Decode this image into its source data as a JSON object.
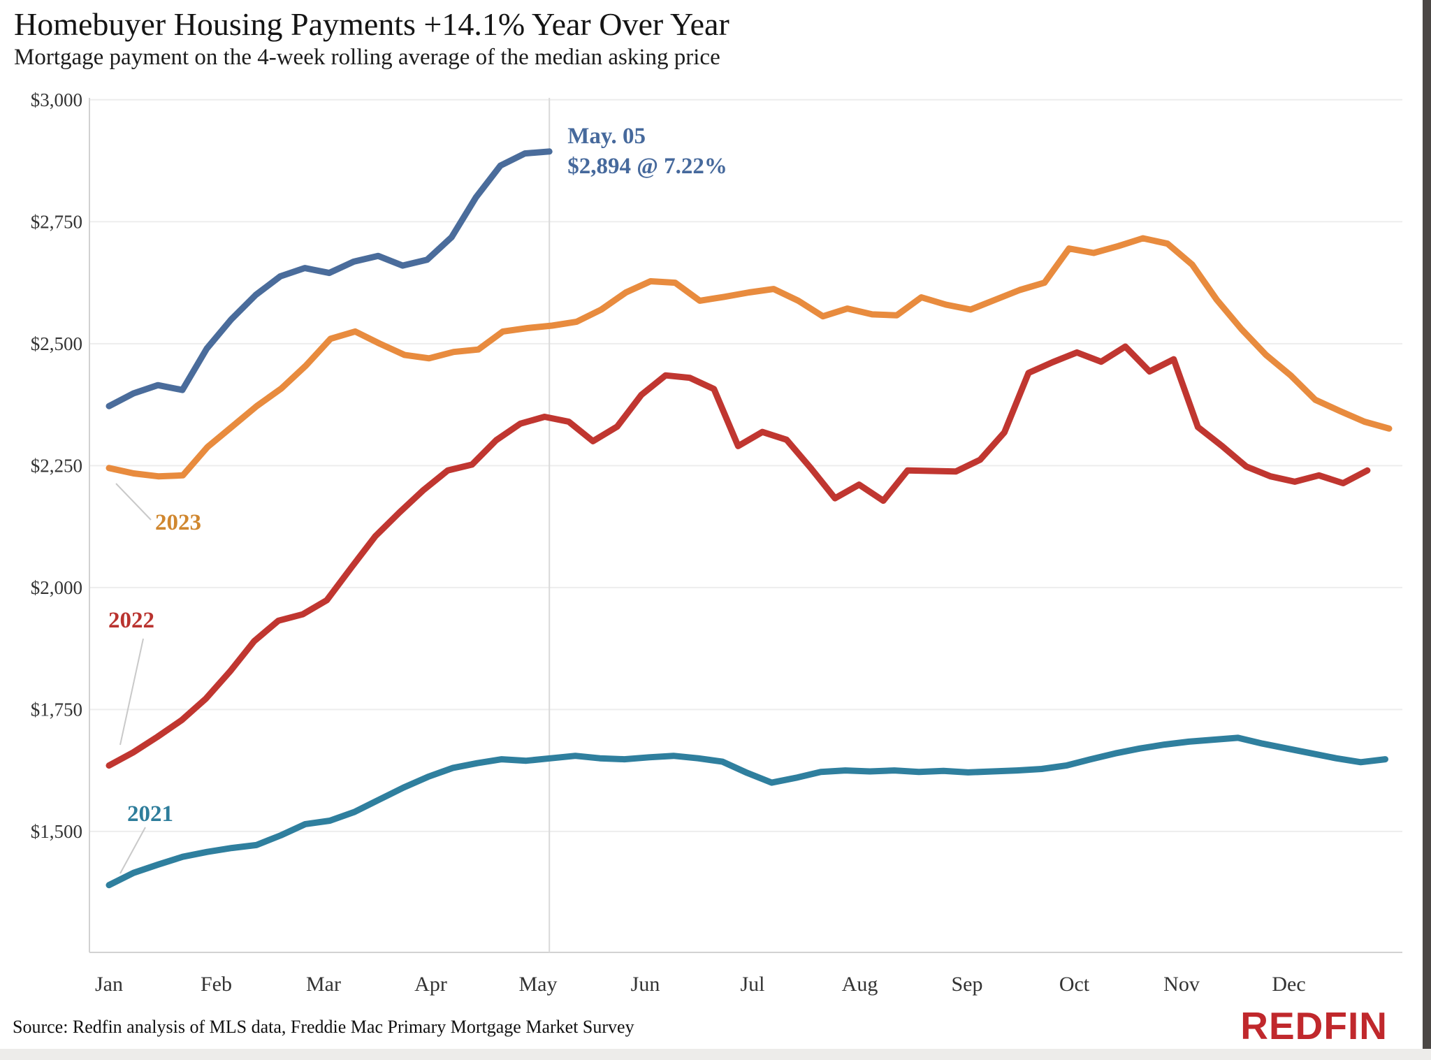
{
  "header": {
    "title": "Homebuyer Housing Payments +14.1% Year Over Year",
    "subtitle": "Mortgage payment on the 4-week rolling average of the median asking price"
  },
  "footer": {
    "source": "Source: Redfin analysis of MLS data, Freddie Mac Primary Mortgage Market Survey",
    "logo": "REDFIN",
    "logo_color": "#c0282c"
  },
  "chart_data": {
    "type": "line",
    "title": "Homebuyer Housing Payments +14.1% Year Over Year",
    "subtitle": "Mortgage payment on the 4-week rolling average of the median asking price",
    "ylim": [
      1252,
      3004
    ],
    "grid": true,
    "grid_color": "#ededed",
    "axis_color": "#d2d2d2",
    "cursor_line_color": "#d9d9d9",
    "leader_color": "#c9c9c9",
    "tick_color": "#333333",
    "yticks": [
      {
        "v": 3000,
        "label": "$3,000"
      },
      {
        "v": 2750,
        "label": "$2,750"
      },
      {
        "v": 2500,
        "label": "$2,500"
      },
      {
        "v": 2250,
        "label": "$2,250"
      },
      {
        "v": 2000,
        "label": "$2,000"
      },
      {
        "v": 1750,
        "label": "$1,750"
      },
      {
        "v": 1500,
        "label": "$1,500"
      }
    ],
    "months": [
      "Jan",
      "Feb",
      "Mar",
      "Apr",
      "May",
      "Jun",
      "Jul",
      "Aug",
      "Sep",
      "Oct",
      "Nov",
      "Dec"
    ],
    "annotation": {
      "line1": "May. 05",
      "line2": "$2,894 @ 7.22%",
      "color": "#46699c"
    },
    "series": [
      {
        "name": "2021",
        "label_text": "2021",
        "label_color": "#2e7d9b",
        "color": "#2f7f9e",
        "end_frac": 0.997,
        "values": [
          1390,
          1415,
          1432,
          1448,
          1458,
          1466,
          1472,
          1492,
          1515,
          1522,
          1540,
          1565,
          1590,
          1612,
          1630,
          1640,
          1648,
          1645,
          1650,
          1655,
          1650,
          1648,
          1652,
          1655,
          1650,
          1643,
          1620,
          1600,
          1610,
          1622,
          1625,
          1623,
          1625,
          1622,
          1624,
          1621,
          1623,
          1625,
          1628,
          1635,
          1648,
          1660,
          1670,
          1678,
          1684,
          1688,
          1692,
          1680,
          1670,
          1660,
          1650,
          1642,
          1648
        ]
      },
      {
        "name": "2022",
        "label_text": "2022",
        "label_color": "#b9332f",
        "color": "#c03630",
        "end_frac": 0.983,
        "values": [
          1635,
          1662,
          1694,
          1728,
          1772,
          1828,
          1890,
          1932,
          1945,
          1974,
          2040,
          2105,
          2154,
          2200,
          2240,
          2252,
          2302,
          2336,
          2350,
          2340,
          2300,
          2330,
          2395,
          2435,
          2430,
          2407,
          2290,
          2319,
          2303,
          2245,
          2183,
          2211,
          2178,
          2240,
          2239,
          2238,
          2262,
          2318,
          2440,
          2462,
          2482,
          2463,
          2494,
          2443,
          2468,
          2329,
          2290,
          2248,
          2228,
          2217,
          2230,
          2214,
          2240
        ]
      },
      {
        "name": "2023",
        "label_text": "2023",
        "label_color": "#d0872f",
        "color": "#e88b3e",
        "end_frac": 1.0,
        "values": [
          2245,
          2234,
          2228,
          2230,
          2288,
          2330,
          2372,
          2408,
          2455,
          2510,
          2525,
          2500,
          2477,
          2470,
          2483,
          2488,
          2525,
          2532,
          2537,
          2545,
          2570,
          2605,
          2628,
          2625,
          2588,
          2596,
          2605,
          2612,
          2588,
          2556,
          2572,
          2560,
          2558,
          2595,
          2580,
          2570,
          2590,
          2610,
          2625,
          2695,
          2686,
          2700,
          2716,
          2705,
          2662,
          2590,
          2530,
          2477,
          2435,
          2385,
          2362,
          2340,
          2326
        ]
      },
      {
        "name": "current_year",
        "label_text": null,
        "color": "#4a6c9b",
        "end_frac": 0.344,
        "annotated": true,
        "values": [
          2372,
          2398,
          2415,
          2405,
          2490,
          2550,
          2600,
          2638,
          2655,
          2645,
          2668,
          2680,
          2660,
          2672,
          2718,
          2800,
          2865,
          2890,
          2894
        ]
      }
    ]
  }
}
